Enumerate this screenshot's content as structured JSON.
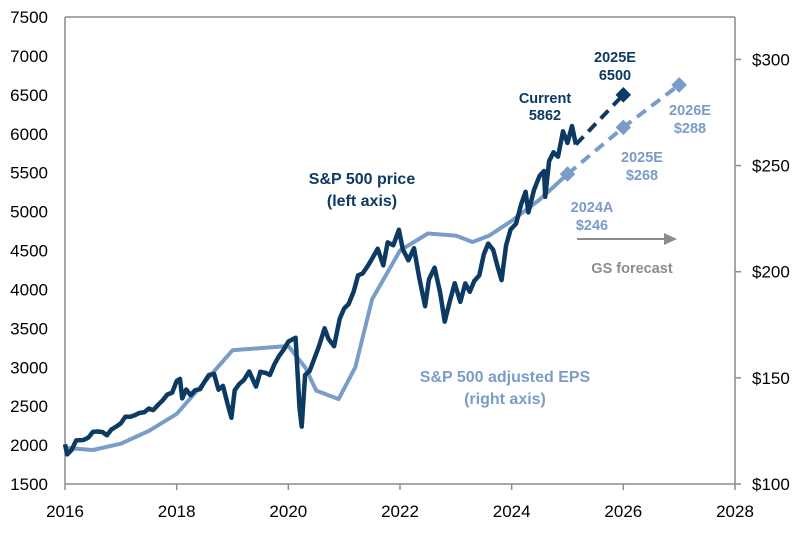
{
  "chart_data": {
    "type": "line",
    "title": "",
    "xlabel": "",
    "ylabel": "",
    "xlim": [
      2016,
      2028
    ],
    "ylim_left": [
      1500,
      7500
    ],
    "ylim_right": [
      100,
      320
    ],
    "grid": false,
    "x_ticks": [
      "2016",
      "2018",
      "2020",
      "2022",
      "2024",
      "2026",
      "2028"
    ],
    "left_ticks": [
      "1500",
      "2000",
      "2500",
      "3000",
      "3500",
      "4000",
      "4500",
      "5000",
      "5500",
      "6000",
      "6500",
      "7000",
      "7500"
    ],
    "right_ticks": [
      "$100",
      "$150",
      "$200",
      "$250",
      "$300"
    ],
    "colors": {
      "price": "#0c3a63",
      "eps": "#7a9cc9",
      "forecast_text": "#8c8c8c",
      "axis": "#8c8c8c"
    },
    "series": [
      {
        "key": "price",
        "axis": "left",
        "x": [
          2016.0,
          2016.04,
          2016.12,
          2016.2,
          2016.33,
          2016.42,
          2016.5,
          2016.58,
          2016.67,
          2016.75,
          2016.83,
          2016.92,
          2017.0,
          2017.08,
          2017.17,
          2017.25,
          2017.33,
          2017.42,
          2017.5,
          2017.58,
          2017.67,
          2017.75,
          2017.83,
          2017.92,
          2018.0,
          2018.06,
          2018.1,
          2018.17,
          2018.25,
          2018.33,
          2018.42,
          2018.5,
          2018.58,
          2018.67,
          2018.75,
          2018.83,
          2018.92,
          2018.98,
          2019.04,
          2019.12,
          2019.2,
          2019.3,
          2019.42,
          2019.5,
          2019.6,
          2019.67,
          2019.75,
          2019.83,
          2019.92,
          2020.0,
          2020.13,
          2020.2,
          2020.24,
          2020.3,
          2020.38,
          2020.46,
          2020.55,
          2020.65,
          2020.72,
          2020.82,
          2020.92,
          2021.0,
          2021.08,
          2021.17,
          2021.25,
          2021.33,
          2021.42,
          2021.5,
          2021.6,
          2021.7,
          2021.78,
          2021.88,
          2021.98,
          2022.05,
          2022.15,
          2022.25,
          2022.35,
          2022.45,
          2022.52,
          2022.62,
          2022.72,
          2022.8,
          2022.9,
          2022.98,
          2023.08,
          2023.17,
          2023.25,
          2023.33,
          2023.42,
          2023.5,
          2023.58,
          2023.67,
          2023.75,
          2023.82,
          2023.9,
          2023.98,
          2024.08,
          2024.17,
          2024.25,
          2024.3,
          2024.4,
          2024.5,
          2024.58,
          2024.6,
          2024.67,
          2024.75,
          2024.83,
          2024.92,
          2025.0,
          2025.08,
          2025.15
        ],
        "y": [
          2010,
          1880,
          1940,
          2060,
          2065,
          2097,
          2170,
          2175,
          2168,
          2126,
          2199,
          2239,
          2279,
          2364,
          2363,
          2384,
          2412,
          2423,
          2470,
          2450,
          2519,
          2575,
          2648,
          2674,
          2824,
          2850,
          2600,
          2714,
          2641,
          2705,
          2718,
          2816,
          2902,
          2914,
          2712,
          2760,
          2507,
          2350,
          2704,
          2784,
          2834,
          2946,
          2752,
          2942,
          2926,
          2900,
          3038,
          3141,
          3231,
          3330,
          3380,
          2480,
          2237,
          2900,
          2950,
          3100,
          3271,
          3500,
          3363,
          3270,
          3622,
          3756,
          3811,
          3973,
          4181,
          4204,
          4298,
          4395,
          4523,
          4308,
          4605,
          4567,
          4766,
          4516,
          4374,
          4530,
          4132,
          3785,
          4130,
          4280,
          3955,
          3586,
          3872,
          4080,
          3840,
          4077,
          3970,
          4109,
          4180,
          4450,
          4589,
          4508,
          4288,
          4120,
          4568,
          4770,
          4846,
          5096,
          5254,
          4990,
          5278,
          5460,
          5522,
          5190,
          5648,
          5762,
          5705,
          6032,
          5882,
          6100,
          5862
        ]
      },
      {
        "key": "eps",
        "axis": "right",
        "x": [
          2016.0,
          2016.5,
          2017.0,
          2017.5,
          2018.0,
          2018.5,
          2019.0,
          2019.5,
          2020.0,
          2020.3,
          2020.5,
          2020.9,
          2021.2,
          2021.5,
          2022.0,
          2022.5,
          2023.0,
          2023.3,
          2023.6,
          2024.0,
          2024.5,
          2025.0
        ],
        "y": [
          117,
          116,
          119,
          125,
          133,
          148,
          163,
          164,
          165,
          155,
          144,
          140,
          155,
          187,
          210,
          218,
          217,
          214,
          217,
          224,
          234,
          246
        ]
      },
      {
        "key": "price_forecast",
        "axis": "left",
        "dashed": true,
        "x": [
          2025.15,
          2026.0
        ],
        "y": [
          5862,
          6500
        ]
      },
      {
        "key": "eps_forecast",
        "axis": "right",
        "dashed": true,
        "x": [
          2025.0,
          2026.0,
          2027.0
        ],
        "y": [
          246,
          268,
          288
        ]
      }
    ],
    "annotations": {
      "price_label": [
        "S&P 500 price",
        "(left axis)"
      ],
      "eps_label": [
        "S&P 500 adjusted EPS",
        "(right axis)"
      ],
      "current": [
        "Current",
        "5862"
      ],
      "price_2025e": [
        "2025E",
        "6500"
      ],
      "eps_2026e": [
        "2026E",
        "$288"
      ],
      "eps_2025e": [
        "2025E",
        "$268"
      ],
      "eps_2024a": [
        "2024A",
        "$246"
      ],
      "forecast": "GS forecast"
    }
  }
}
